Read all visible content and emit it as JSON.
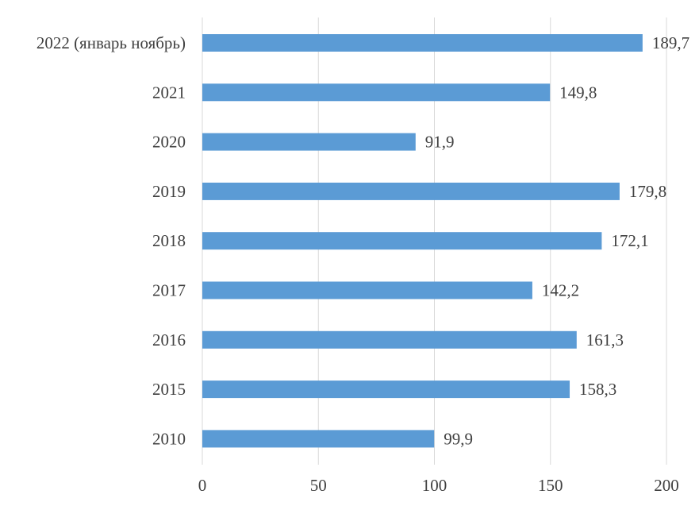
{
  "chart_data": {
    "type": "bar",
    "orientation": "horizontal",
    "categories": [
      "2022 (январь ноябрь)",
      "2021",
      "2020",
      "2019",
      "2018",
      "2017",
      "2016",
      "2015",
      "2010"
    ],
    "values": [
      189.7,
      149.8,
      91.9,
      179.8,
      172.1,
      142.2,
      161.3,
      158.3,
      99.9
    ],
    "value_labels": [
      "189,7",
      "149,8",
      "91,9",
      "179,8",
      "172,1",
      "142,2",
      "161,3",
      "158,3",
      "99,9"
    ],
    "x_ticks": [
      0,
      50,
      100,
      150,
      200
    ],
    "xlim": [
      0,
      200
    ],
    "title": "",
    "xlabel": "",
    "ylabel": "",
    "grid": "vertical",
    "legend": "none",
    "bar_color": "#5b9bd5",
    "grid_color": "#d9d9d9",
    "text_color": "#404040"
  }
}
